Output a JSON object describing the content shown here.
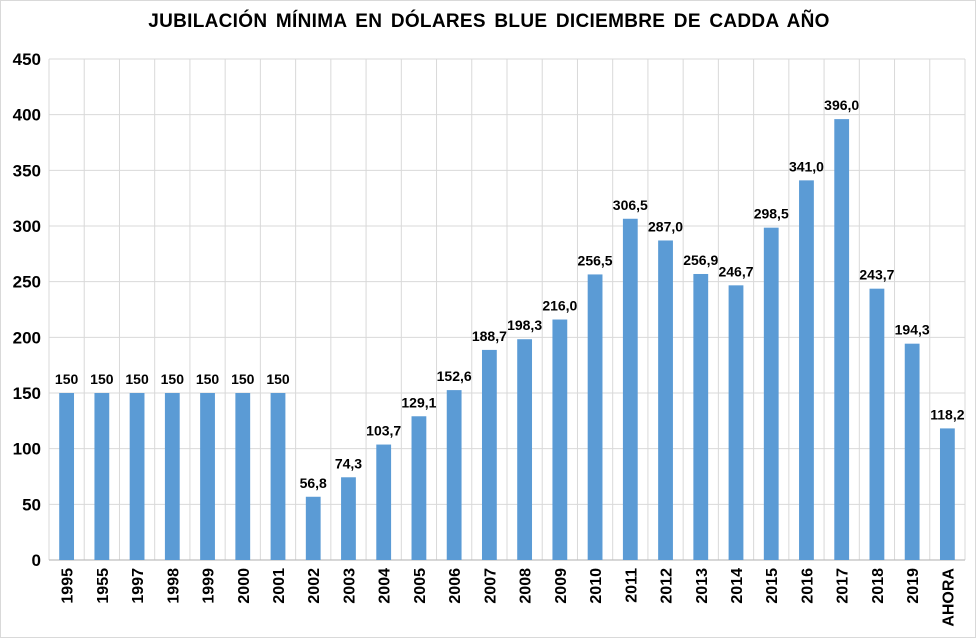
{
  "chart_data": {
    "type": "bar",
    "title": "JUBILACIÓN MÍNIMA EN DÓLARES BLUE DICIEMBRE DE CADDA AÑO",
    "xlabel": "",
    "ylabel": "",
    "ylim": [
      0,
      450
    ],
    "yticks": [
      0,
      50,
      100,
      150,
      200,
      250,
      300,
      350,
      400,
      450
    ],
    "grid": true,
    "bar_color": "#5b9bd5",
    "grid_color": "#d9d9d9",
    "categories": [
      "1995",
      "1955",
      "1997",
      "1998",
      "1999",
      "2000",
      "2001",
      "2002",
      "2003",
      "2004",
      "2005",
      "2006",
      "2007",
      "2008",
      "2009",
      "2010",
      "2011",
      "2012",
      "2013",
      "2014",
      "2015",
      "2016",
      "2017",
      "2018",
      "2019",
      "AHORA"
    ],
    "values": [
      150,
      150,
      150,
      150,
      150,
      150,
      150,
      56.8,
      74.3,
      103.7,
      129.1,
      152.6,
      188.7,
      198.3,
      216.0,
      256.5,
      306.5,
      287.0,
      256.9,
      246.7,
      298.5,
      341.0,
      396.0,
      243.7,
      194.3,
      118.2
    ],
    "data_labels": [
      "150",
      "150",
      "150",
      "150",
      "150",
      "150",
      "150",
      "56,8",
      "74,3",
      "103,7",
      "129,1",
      "152,6",
      "188,7",
      "198,3",
      "216,0",
      "256,5",
      "306,5",
      "287,0",
      "256,9",
      "246,7",
      "298,5",
      "341,0",
      "396,0",
      "243,7",
      "194,3",
      "118,2"
    ]
  }
}
